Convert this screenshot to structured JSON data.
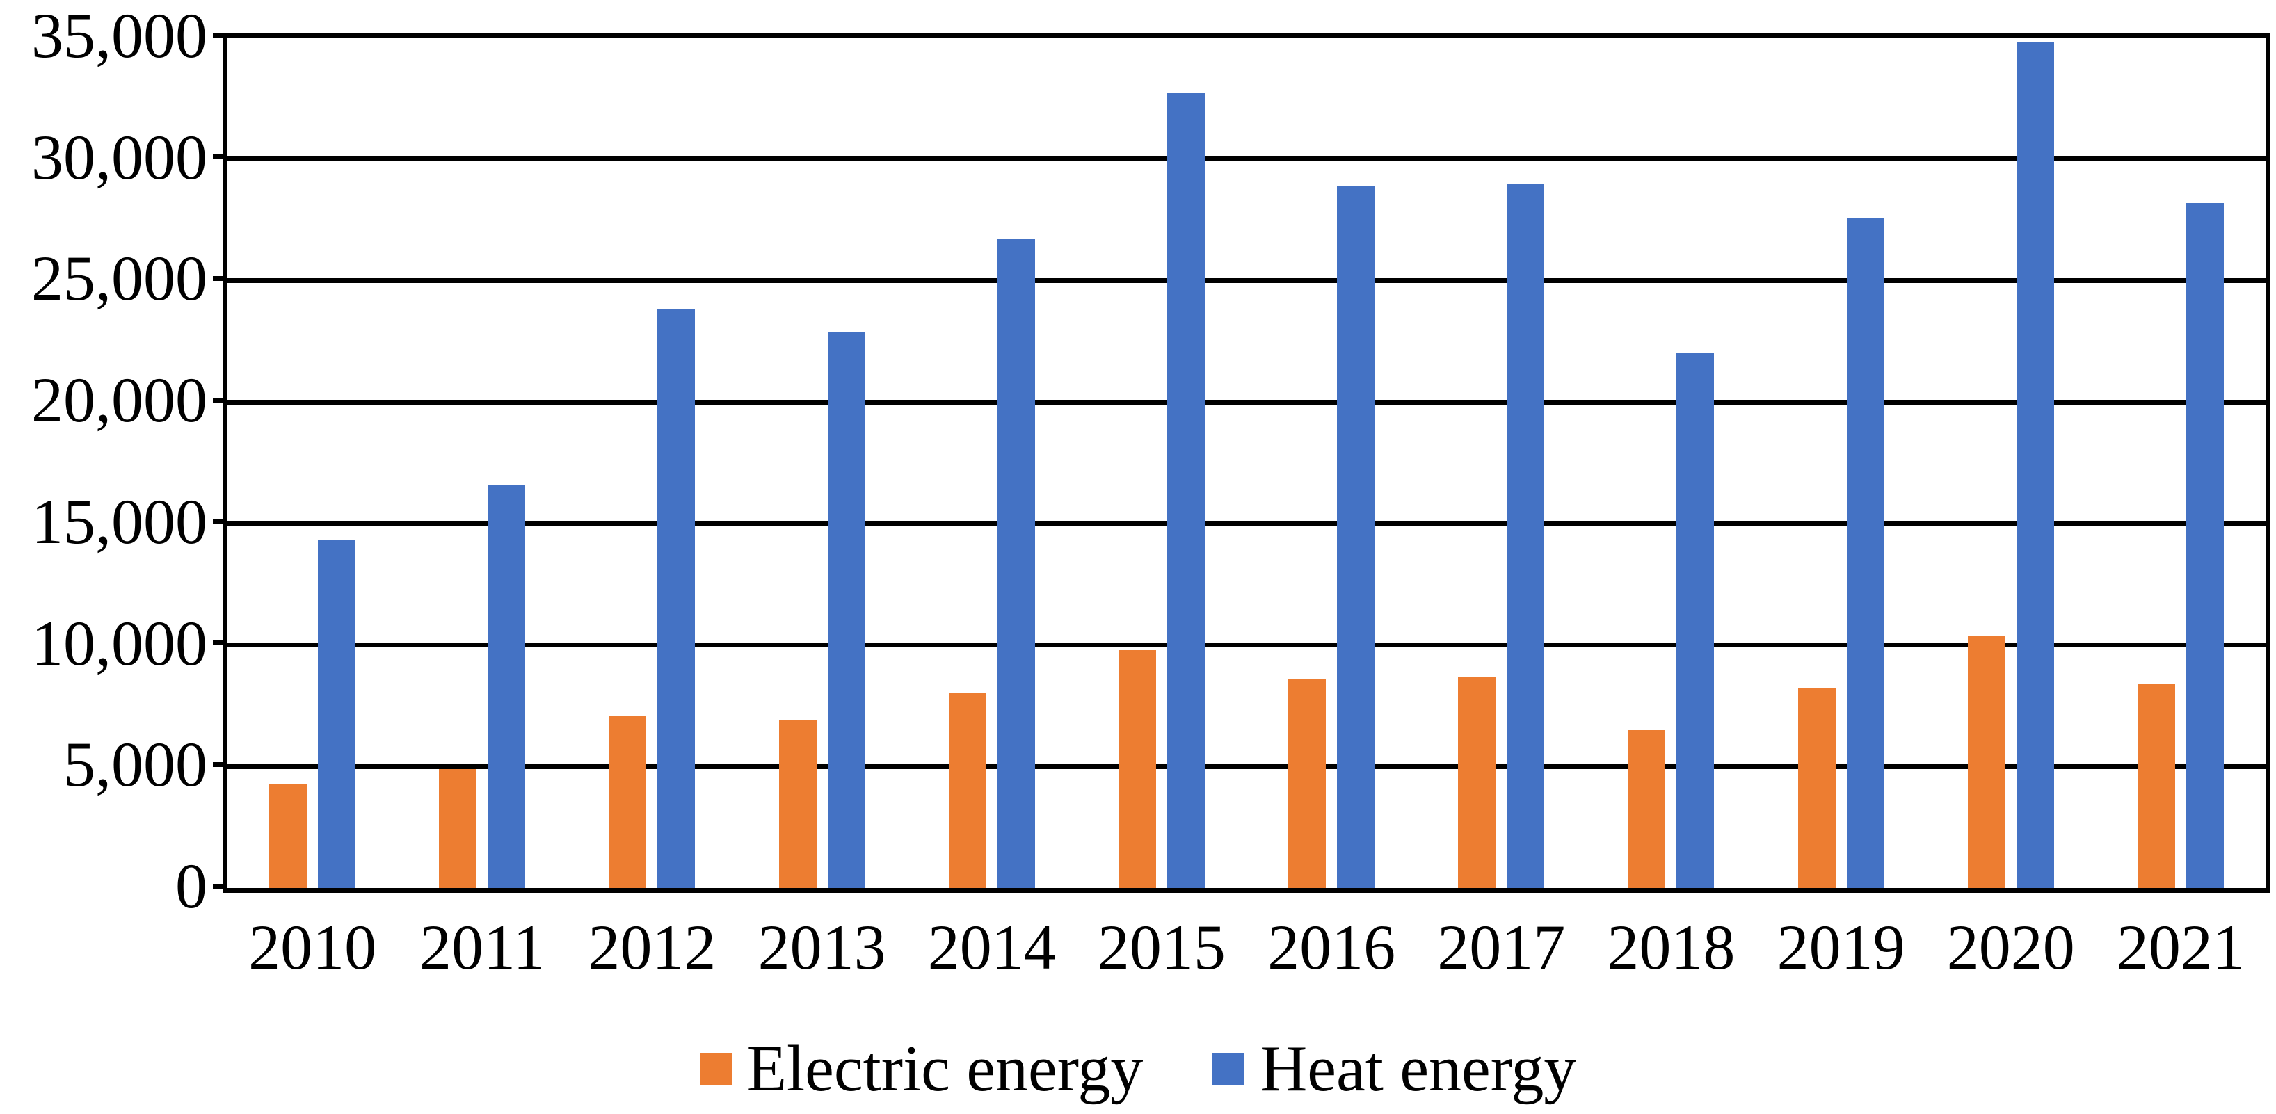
{
  "chart_data": {
    "type": "bar",
    "categories": [
      "2010",
      "2011",
      "2012",
      "2013",
      "2014",
      "2015",
      "2016",
      "2017",
      "2018",
      "2019",
      "2020",
      "2021"
    ],
    "series": [
      {
        "name": "Electric energy",
        "color": "#ED7D31",
        "values": [
          4300,
          4900,
          7100,
          6900,
          8000,
          9800,
          8600,
          8700,
          6500,
          8200,
          10400,
          8400
        ]
      },
      {
        "name": "Heat energy",
        "color": "#4472C4",
        "values": [
          14300,
          16600,
          23800,
          22900,
          26700,
          32700,
          28900,
          29000,
          22000,
          27600,
          34800,
          28200
        ]
      }
    ],
    "title": "",
    "xlabel": "",
    "ylabel": "",
    "ylim": [
      0,
      35000
    ],
    "ytick_step": 5000,
    "ytick_labels_top_to_bottom": [
      "35,000",
      "30,000",
      "25,000",
      "20,000",
      "15,000",
      "10,000",
      "5,000",
      "0"
    ],
    "grid": true,
    "gridline_color": "#000000",
    "plot_border_color": "#000000",
    "legend_position": "bottom-center"
  },
  "legend": {
    "items": [
      {
        "label": "Electric energy",
        "color": "#ED7D31"
      },
      {
        "label": "Heat energy",
        "color": "#4472C4"
      }
    ]
  },
  "colors": {
    "background": "#ffffff",
    "text": "#000000",
    "electric": "#ED7D31",
    "heat": "#4472C4"
  }
}
